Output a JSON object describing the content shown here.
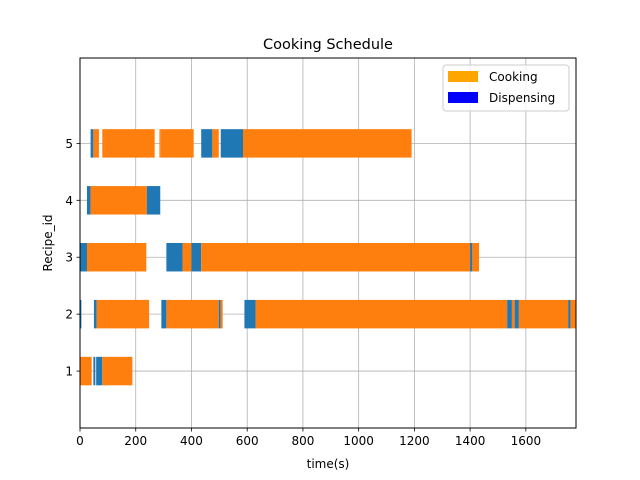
{
  "chart_data": {
    "type": "gantt",
    "title": "Cooking Schedule",
    "xlabel": "time(s)",
    "ylabel": "Recipe_id",
    "xlim": [
      0,
      1780
    ],
    "ylim": [
      0,
      6.5
    ],
    "xticks": [
      0,
      200,
      400,
      600,
      800,
      1000,
      1200,
      1400,
      1600
    ],
    "yticks": [
      1,
      2,
      3,
      4,
      5
    ],
    "grid": true,
    "legend_position": "top-right",
    "legend": [
      {
        "label": "Cooking",
        "color": "#ffa500"
      },
      {
        "label": "Dispensing",
        "color": "#0000ff"
      }
    ],
    "colors": {
      "cooking_bar": "#ff7f0e",
      "dispensing_bar": "#1f77b4"
    },
    "series": [
      {
        "recipe": 1,
        "tasks": [
          {
            "type": "cooking",
            "start": 0,
            "end": 42
          },
          {
            "type": "dispensing",
            "start": 48,
            "end": 55
          },
          {
            "type": "dispensing",
            "start": 58,
            "end": 80
          },
          {
            "type": "cooking",
            "start": 80,
            "end": 188
          }
        ]
      },
      {
        "recipe": 2,
        "tasks": [
          {
            "type": "dispensing",
            "start": 0,
            "end": 5
          },
          {
            "type": "dispensing",
            "start": 50,
            "end": 60
          },
          {
            "type": "cooking",
            "start": 60,
            "end": 248
          },
          {
            "type": "dispensing",
            "start": 292,
            "end": 310
          },
          {
            "type": "cooking",
            "start": 310,
            "end": 498
          },
          {
            "type": "dispensing",
            "start": 498,
            "end": 505
          },
          {
            "type": "cooking",
            "start": 505,
            "end": 512
          },
          {
            "type": "dispensing",
            "start": 590,
            "end": 630
          },
          {
            "type": "cooking",
            "start": 630,
            "end": 1533
          },
          {
            "type": "dispensing",
            "start": 1533,
            "end": 1550
          },
          {
            "type": "cooking",
            "start": 1550,
            "end": 1560
          },
          {
            "type": "dispensing",
            "start": 1560,
            "end": 1575
          },
          {
            "type": "cooking",
            "start": 1575,
            "end": 1752
          },
          {
            "type": "dispensing",
            "start": 1752,
            "end": 1760
          },
          {
            "type": "cooking",
            "start": 1760,
            "end": 1780
          }
        ]
      },
      {
        "recipe": 3,
        "tasks": [
          {
            "type": "dispensing",
            "start": 0,
            "end": 25
          },
          {
            "type": "cooking",
            "start": 25,
            "end": 238
          },
          {
            "type": "dispensing",
            "start": 310,
            "end": 368
          },
          {
            "type": "cooking",
            "start": 368,
            "end": 400
          },
          {
            "type": "dispensing",
            "start": 400,
            "end": 435
          },
          {
            "type": "cooking",
            "start": 435,
            "end": 1400
          },
          {
            "type": "dispensing",
            "start": 1400,
            "end": 1408
          },
          {
            "type": "cooking",
            "start": 1408,
            "end": 1432
          }
        ]
      },
      {
        "recipe": 4,
        "tasks": [
          {
            "type": "dispensing",
            "start": 25,
            "end": 38
          },
          {
            "type": "cooking",
            "start": 38,
            "end": 240
          },
          {
            "type": "dispensing",
            "start": 240,
            "end": 288
          }
        ]
      },
      {
        "recipe": 5,
        "tasks": [
          {
            "type": "dispensing",
            "start": 38,
            "end": 48
          },
          {
            "type": "cooking",
            "start": 48,
            "end": 68
          },
          {
            "type": "cooking",
            "start": 80,
            "end": 88
          },
          {
            "type": "cooking",
            "start": 88,
            "end": 268
          },
          {
            "type": "cooking",
            "start": 285,
            "end": 290
          },
          {
            "type": "cooking",
            "start": 290,
            "end": 408
          },
          {
            "type": "dispensing",
            "start": 435,
            "end": 475
          },
          {
            "type": "cooking",
            "start": 475,
            "end": 498
          },
          {
            "type": "dispensing",
            "start": 505,
            "end": 585
          },
          {
            "type": "cooking",
            "start": 585,
            "end": 1190
          }
        ]
      }
    ]
  }
}
